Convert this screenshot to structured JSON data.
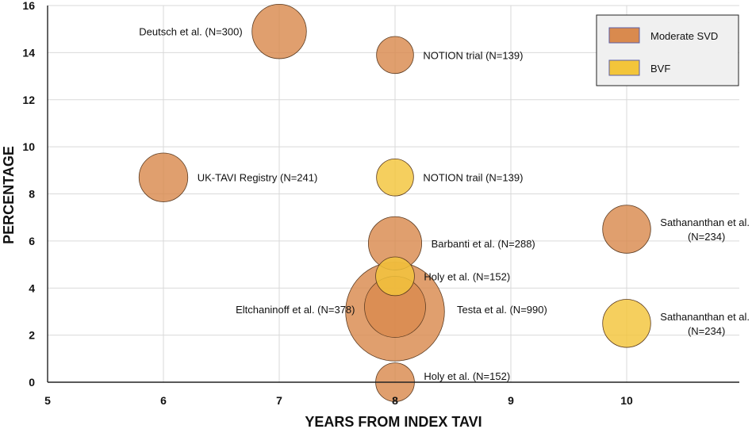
{
  "chart_data": {
    "type": "scatter",
    "subtype": "bubble",
    "title": "",
    "xlabel": "YEARS FROM INDEX TAVI",
    "ylabel": "PERCENTAGE",
    "xlim": [
      5,
      11
    ],
    "ylim": [
      0,
      16
    ],
    "xticks": [
      5,
      6,
      7,
      8,
      9,
      10
    ],
    "yticks": [
      0,
      2,
      4,
      6,
      8,
      10,
      12,
      14,
      16
    ],
    "grid": true,
    "legend_position": "top-right",
    "colors": {
      "Moderate SVD": "#d98a4e",
      "BVF": "#f3c53a"
    },
    "series": [
      {
        "name": "Moderate SVD",
        "points": [
          {
            "x": 7,
            "y": 14.9,
            "n": 300,
            "label": "Deutsch et al. (N=300)"
          },
          {
            "x": 8,
            "y": 13.9,
            "n": 139,
            "label": "NOTION trial (N=139)"
          },
          {
            "x": 6,
            "y": 8.7,
            "n": 241,
            "label": "UK-TAVI Registry (N=241)"
          },
          {
            "x": 10,
            "y": 6.5,
            "n": 234,
            "label": "Sathananthan et al. (N=234)"
          },
          {
            "x": 8,
            "y": 5.9,
            "n": 288,
            "label": "Barbanti et al. (N=288)"
          },
          {
            "x": 8,
            "y": 3.0,
            "n": 990,
            "label": "Testa et al. (N=990)"
          },
          {
            "x": 8,
            "y": 3.2,
            "n": 378,
            "label": "Eltchaninoff et al. (N=378)"
          },
          {
            "x": 8,
            "y": 0.0,
            "n": 152,
            "label": "Holy et al. (N=152)"
          }
        ]
      },
      {
        "name": "BVF",
        "points": [
          {
            "x": 8,
            "y": 8.7,
            "n": 139,
            "label": "NOTION trail (N=139)"
          },
          {
            "x": 8,
            "y": 4.5,
            "n": 152,
            "label": "Holy et al. (N=152)"
          },
          {
            "x": 10,
            "y": 2.5,
            "n": 234,
            "label": "Sathananthan et al. (N=234)"
          }
        ]
      }
    ]
  }
}
